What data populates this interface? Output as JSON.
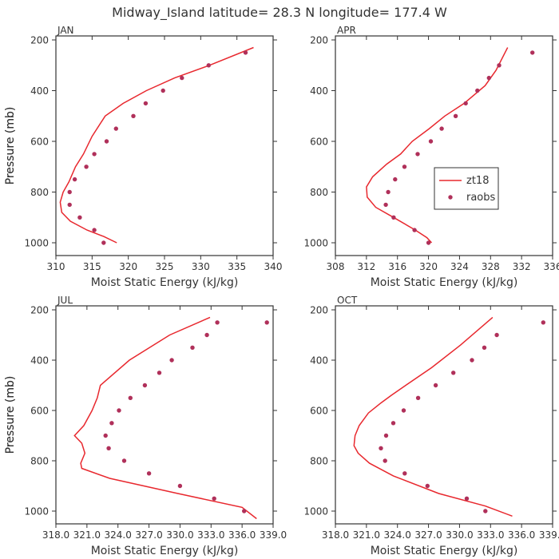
{
  "figure": {
    "title": "Midway_Island  latitude= 28.3 N longitude= 177.4 W"
  },
  "colors": {
    "model": "#e8282e",
    "obs": "#b0305a",
    "axis": "#333333"
  },
  "chart_data": [
    {
      "type": "line",
      "panel": "JAN",
      "xlabel": "Moist Static Energy (kJ/kg)",
      "ylabel": "Pressure (mb)",
      "xlim": [
        310,
        340
      ],
      "ylim": [
        1000,
        200
      ],
      "xticks": [
        310,
        315,
        320,
        325,
        330,
        335,
        340
      ],
      "xtick_labels": [
        "310",
        "315",
        "320",
        "325",
        "330",
        "335",
        "340"
      ],
      "yticks": [
        200,
        400,
        600,
        800,
        1000
      ],
      "ytick_labels": [
        "200",
        "400",
        "600",
        "800",
        "1000"
      ],
      "legend": null,
      "series": [
        {
          "name": "zt18",
          "style": "line",
          "x": [
            318.4,
            316.6,
            314.3,
            312.0,
            310.8,
            310.6,
            311.0,
            311.8,
            312.7,
            313.8,
            315.0,
            316.8,
            319.3,
            322.5,
            326.4,
            331.2,
            337.3
          ],
          "y": [
            1000,
            975,
            950,
            915,
            880,
            840,
            800,
            760,
            700,
            650,
            580,
            500,
            450,
            400,
            350,
            300,
            230
          ]
        },
        {
          "name": "raobs",
          "style": "markers",
          "x": [
            316.6,
            315.3,
            313.3,
            311.9,
            311.9,
            312.6,
            314.2,
            315.3,
            317.0,
            318.3,
            320.7,
            322.4,
            324.8,
            327.4,
            331.1,
            336.2
          ],
          "y": [
            1000,
            950,
            900,
            850,
            800,
            750,
            700,
            650,
            600,
            550,
            500,
            450,
            400,
            350,
            300,
            250
          ]
        }
      ]
    },
    {
      "type": "line",
      "panel": "APR",
      "xlabel": "Moist Static Energy (kJ/kg)",
      "ylabel": "Pressure (mb)",
      "xlim": [
        308,
        336
      ],
      "ylim": [
        1000,
        200
      ],
      "xticks": [
        308,
        312,
        316,
        320,
        324,
        328,
        332,
        336
      ],
      "xtick_labels": [
        "308",
        "312",
        "316",
        "320",
        "324",
        "328",
        "332",
        "336"
      ],
      "yticks": [
        200,
        400,
        600,
        800,
        1000
      ],
      "ytick_labels": [
        "200",
        "400",
        "600",
        "800",
        "1000"
      ],
      "legend": {
        "position": "center-right",
        "entries": [
          "zt18",
          "raobs"
        ]
      },
      "series": [
        {
          "name": "zt18",
          "style": "line",
          "x": [
            320.4,
            319.8,
            318.3,
            315.5,
            313.2,
            312.1,
            312.0,
            312.8,
            314.6,
            316.4,
            317.9,
            320.1,
            322.1,
            324.6,
            327.3,
            328.7,
            330.2
          ],
          "y": [
            1000,
            980,
            950,
            900,
            860,
            820,
            780,
            740,
            690,
            650,
            600,
            550,
            500,
            450,
            380,
            320,
            230
          ]
        },
        {
          "name": "raobs",
          "style": "markers",
          "x": [
            320.0,
            318.2,
            315.5,
            314.5,
            314.8,
            315.7,
            316.9,
            318.6,
            320.3,
            321.7,
            323.5,
            324.8,
            326.3,
            327.8,
            329.1,
            333.4
          ],
          "y": [
            1000,
            950,
            900,
            850,
            800,
            750,
            700,
            650,
            600,
            550,
            500,
            450,
            400,
            350,
            300,
            250
          ]
        }
      ]
    },
    {
      "type": "line",
      "panel": "JUL",
      "xlabel": "Moist Static Energy (kJ/kg)",
      "ylabel": "Pressure (mb)",
      "xlim": [
        318.0,
        339.0
      ],
      "ylim": [
        1000,
        200
      ],
      "xticks": [
        318.0,
        321.0,
        324.0,
        327.0,
        330.0,
        333.0,
        336.0,
        339.0
      ],
      "xtick_labels": [
        "318.0",
        "321.0",
        "324.0",
        "327.0",
        "330.0",
        "333.0",
        "336.0",
        "339.0"
      ],
      "yticks": [
        200,
        400,
        600,
        800,
        1000
      ],
      "ytick_labels": [
        "200",
        "400",
        "600",
        "800",
        "1000"
      ],
      "legend": null,
      "series": [
        {
          "name": "zt18",
          "style": "line",
          "x": [
            337.4,
            336.0,
            329.8,
            323.2,
            320.5,
            320.4,
            320.8,
            320.5,
            319.8,
            320.7,
            321.5,
            322.0,
            322.3,
            325.1,
            329.0,
            332.9
          ],
          "y": [
            1030,
            985,
            930,
            870,
            830,
            810,
            770,
            730,
            700,
            660,
            600,
            550,
            500,
            400,
            300,
            230
          ]
        },
        {
          "name": "raobs",
          "style": "markers",
          "x": [
            336.2,
            333.3,
            330.0,
            327.0,
            324.6,
            323.1,
            322.8,
            323.4,
            324.1,
            325.2,
            326.6,
            328.0,
            329.2,
            331.2,
            332.6,
            333.6,
            338.4
          ],
          "y": [
            1000,
            950,
            900,
            850,
            800,
            750,
            700,
            650,
            600,
            550,
            500,
            450,
            400,
            350,
            300,
            250,
            250
          ]
        }
      ]
    },
    {
      "type": "line",
      "panel": "OCT",
      "xlabel": "Moist Static Energy (kJ/kg)",
      "ylabel": "Pressure (mb)",
      "xlim": [
        318.0,
        339.0
      ],
      "ylim": [
        1000,
        200
      ],
      "xticks": [
        318.0,
        321.0,
        324.0,
        327.0,
        330.0,
        333.0,
        336.0,
        339.0
      ],
      "xtick_labels": [
        "318.0",
        "321.0",
        "324.0",
        "327.0",
        "330.0",
        "333.0",
        "336.0",
        "339.0"
      ],
      "yticks": [
        200,
        400,
        600,
        800,
        1000
      ],
      "ytick_labels": [
        "200",
        "400",
        "600",
        "800",
        "1000"
      ],
      "legend": null,
      "series": [
        {
          "name": "zt18",
          "style": "line",
          "x": [
            335.1,
            332.5,
            328.0,
            323.6,
            321.3,
            320.2,
            319.8,
            319.9,
            320.3,
            321.2,
            322.4,
            323.4,
            324.8,
            327.3,
            330.1,
            333.2
          ],
          "y": [
            1020,
            980,
            930,
            860,
            810,
            770,
            740,
            700,
            660,
            610,
            570,
            540,
            500,
            430,
            340,
            230
          ]
        },
        {
          "name": "raobs",
          "style": "markers",
          "x": [
            332.5,
            330.7,
            326.9,
            324.7,
            322.8,
            322.4,
            322.9,
            323.6,
            324.6,
            326.0,
            327.7,
            329.4,
            331.2,
            332.4,
            333.6,
            338.1
          ],
          "y": [
            1000,
            950,
            900,
            850,
            800,
            750,
            700,
            650,
            600,
            550,
            500,
            450,
            400,
            350,
            300,
            250
          ]
        }
      ]
    }
  ]
}
